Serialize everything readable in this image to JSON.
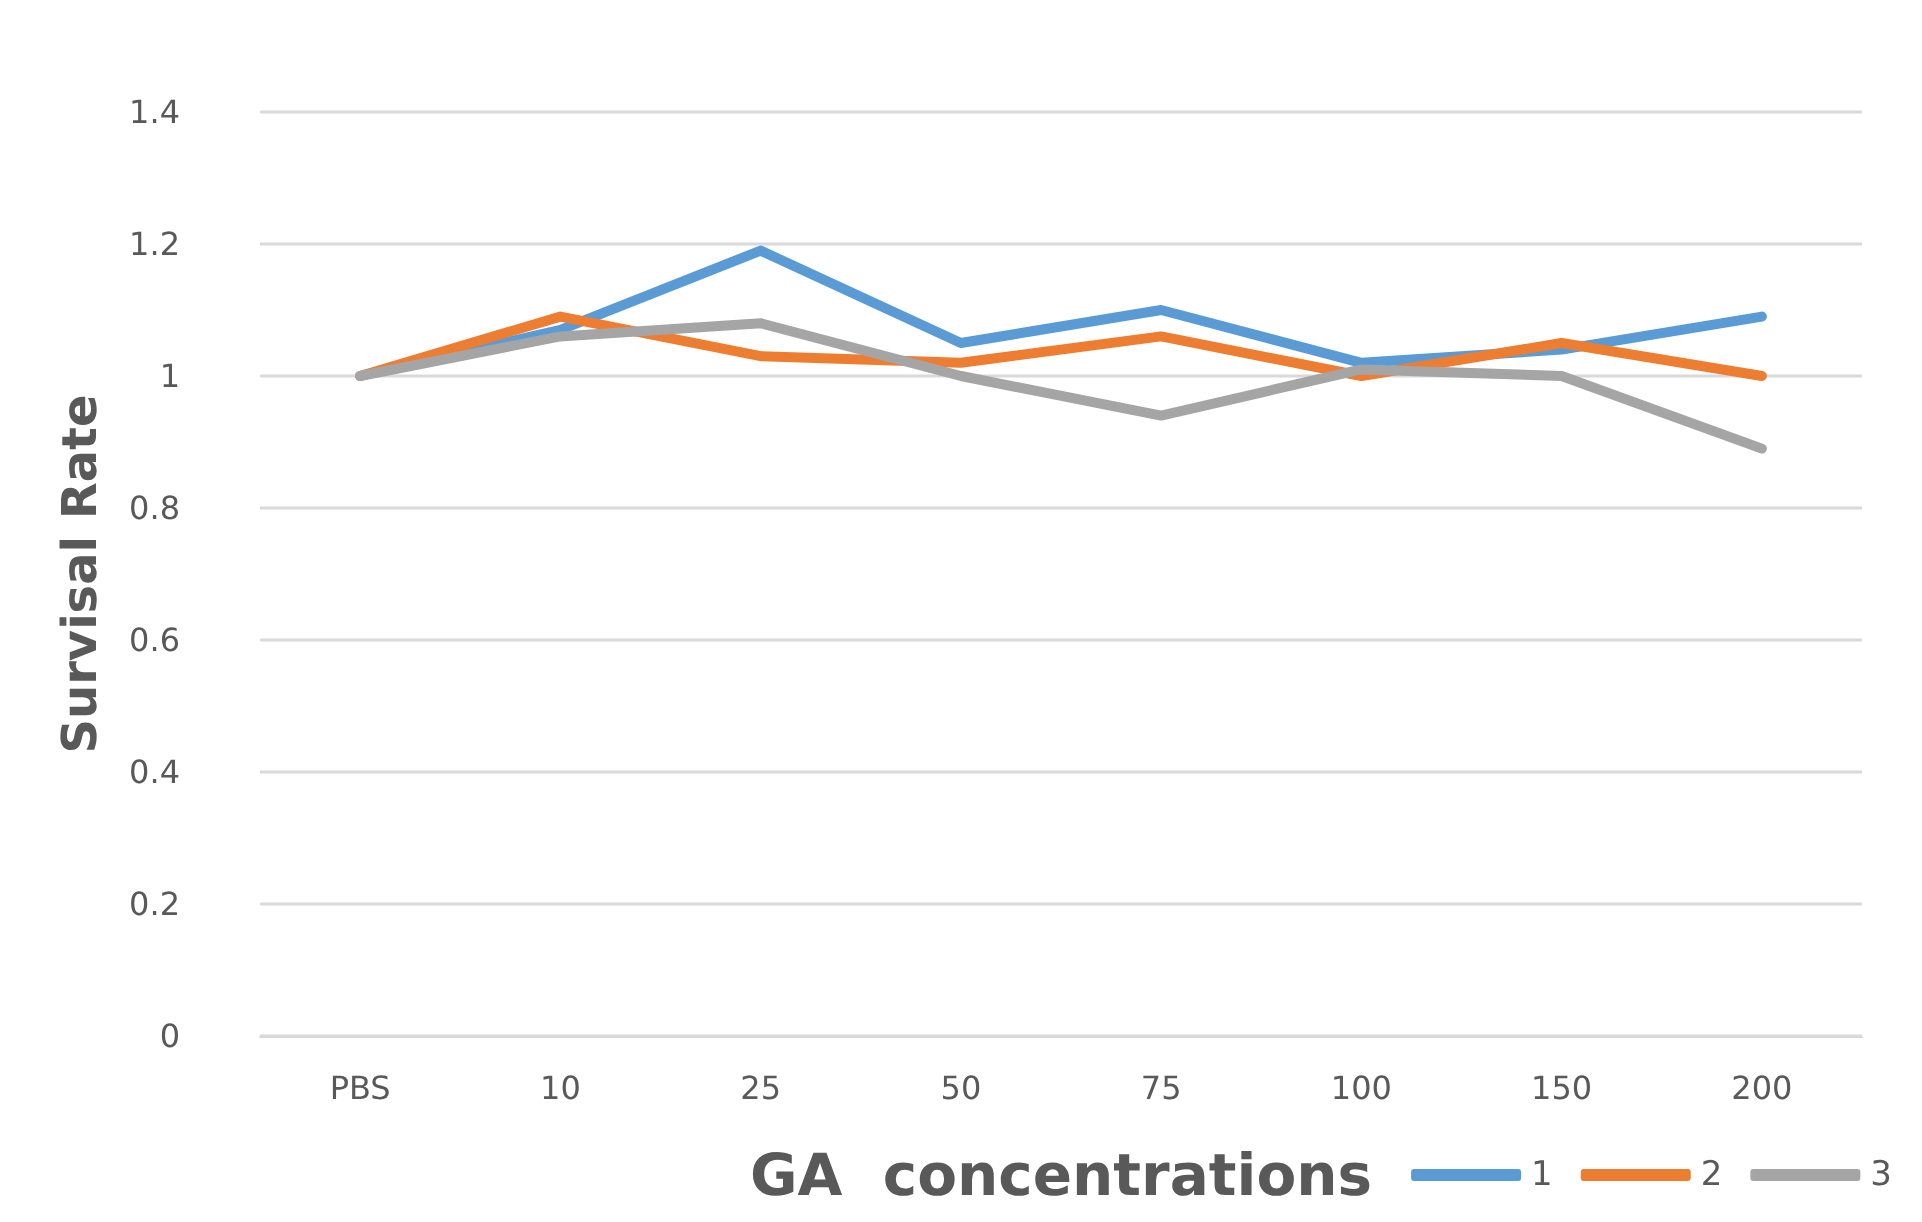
{
  "chart_data": {
    "type": "line",
    "xlabel": "GA  concentrations",
    "ylabel": "Survisal Rate",
    "categories": [
      "PBS",
      "10",
      "25",
      "50",
      "75",
      "100",
      "150",
      "200"
    ],
    "series": [
      {
        "name": "1",
        "color": "#5b9bd5",
        "values": [
          1,
          1.07,
          1.19,
          1.05,
          1.1,
          1.02,
          1.04,
          1.09
        ]
      },
      {
        "name": "2",
        "color": "#ed7d31",
        "values": [
          1,
          1.09,
          1.03,
          1.02,
          1.06,
          1.0,
          1.05,
          1.0
        ]
      },
      {
        "name": "3",
        "color": "#a5a5a5",
        "values": [
          1,
          1.06,
          1.08,
          1.0,
          0.94,
          1.01,
          1.0,
          0.89
        ]
      }
    ],
    "ylim": [
      0,
      1.4
    ],
    "yticks": [
      0,
      0.2,
      0.4,
      0.6,
      0.8,
      1,
      1.2,
      1.4
    ],
    "grid": "y",
    "legend": "bottom right",
    "marker": "none",
    "line_style": "solid"
  }
}
